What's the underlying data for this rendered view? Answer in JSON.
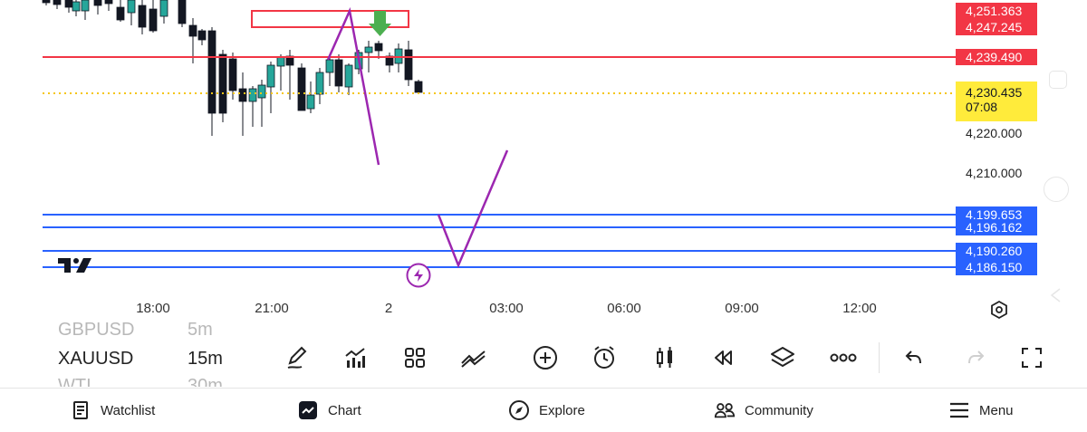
{
  "chart": {
    "price_tags": [
      {
        "label": "4,251.363",
        "color": "#f23645"
      },
      {
        "label": "4,247.245",
        "color": "#f23645"
      },
      {
        "label": "4,239.490",
        "color": "#f23645"
      },
      {
        "label": "4,230.435",
        "sub": "07:08",
        "color": "#ffeb3b",
        "text_color": "#131722"
      },
      {
        "label": "4,199.653",
        "color": "#2962ff"
      },
      {
        "label": "4,196.162",
        "color": "#2962ff"
      },
      {
        "label": "4,190.260",
        "color": "#2962ff"
      },
      {
        "label": "4,186.150",
        "color": "#2962ff"
      }
    ],
    "axis_ticks": [
      "4,220.000",
      "4,210.000"
    ],
    "time_ticks": [
      "18:00",
      "21:00",
      "2",
      "03:00",
      "06:00",
      "09:00",
      "12:00"
    ],
    "colors": {
      "up": "#26a69a",
      "down": "#131722",
      "red_line": "#f23645",
      "blue_line": "#2962ff",
      "drawing": "#9c27b0",
      "arrow": "#4caf50",
      "current": "#ffeb3b"
    }
  },
  "symbols": {
    "prev": {
      "name": "GBPUSD",
      "tf": "5m"
    },
    "current": {
      "name": "XAUUSD",
      "tf": "15m"
    },
    "next": {
      "name": "WTI",
      "tf": "30m"
    }
  },
  "toolbar": [
    {
      "icon": "pencil-icon"
    },
    {
      "icon": "indicators-icon"
    },
    {
      "icon": "templates-icon"
    },
    {
      "icon": "strategy-icon"
    },
    {
      "icon": "add-icon"
    },
    {
      "icon": "alarm-icon"
    },
    {
      "icon": "candles-icon"
    },
    {
      "icon": "replay-icon"
    },
    {
      "icon": "layers-icon"
    },
    {
      "icon": "more-icon"
    },
    {
      "icon": "undo-icon"
    },
    {
      "icon": "redo-icon"
    },
    {
      "icon": "fullscreen-icon"
    }
  ],
  "nav": {
    "watchlist": "Watchlist",
    "chart": "Chart",
    "explore": "Explore",
    "community": "Community",
    "menu": "Menu"
  }
}
